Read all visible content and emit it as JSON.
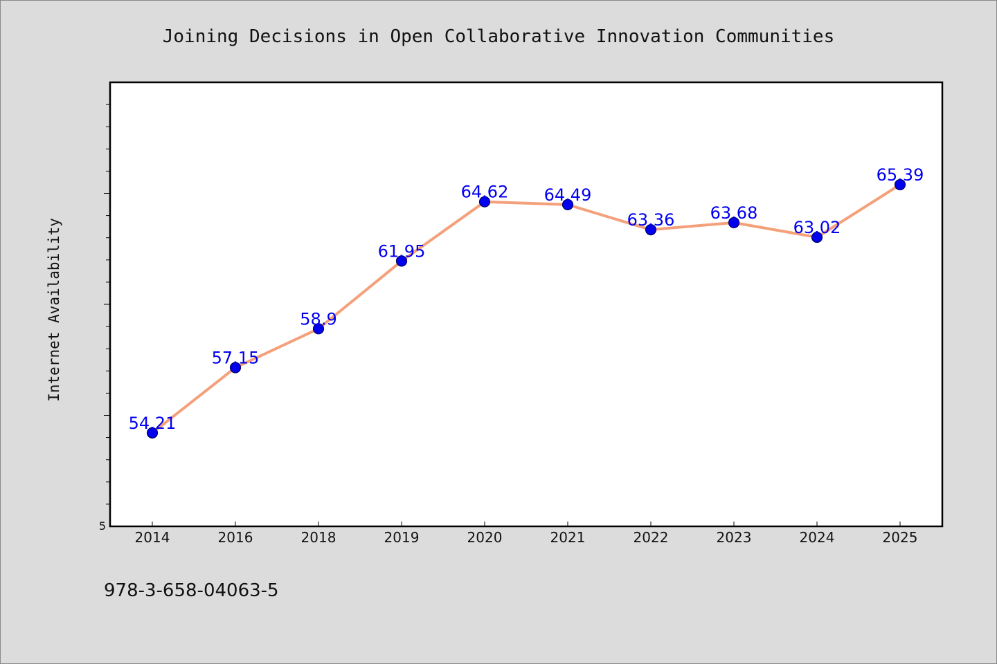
{
  "chart_data": {
    "type": "line",
    "title": "Joining Decisions in Open Collaborative Innovation Communities",
    "xlabel": "",
    "ylabel": "Internet Availability",
    "categories": [
      "2014",
      "2016",
      "2018",
      "2019",
      "2020",
      "2021",
      "2022",
      "2023",
      "2024",
      "2025"
    ],
    "series": [
      {
        "values": [
          54.21,
          57.15,
          58.9,
          61.95,
          64.62,
          64.49,
          63.36,
          63.68,
          63.02,
          65.39
        ],
        "data_labels": [
          "54.21",
          "57.15",
          "58.9",
          "61.95",
          "64.62",
          "64.49",
          "63.36",
          "63.68",
          "63.02",
          "65.39"
        ]
      }
    ],
    "ylim": [
      50,
      70
    ],
    "y_tick_labels": [
      "5"
    ],
    "grid": false,
    "legend": "none",
    "colors": {
      "line": "#f4a07a",
      "marker": "#0000ee",
      "marker_edge": "#000060",
      "data_label": "#0000ee",
      "plot_background": "#ffffff",
      "page_background": "#dcdcdc"
    }
  },
  "footer": {
    "isbn": "978-3-658-04063-5"
  }
}
